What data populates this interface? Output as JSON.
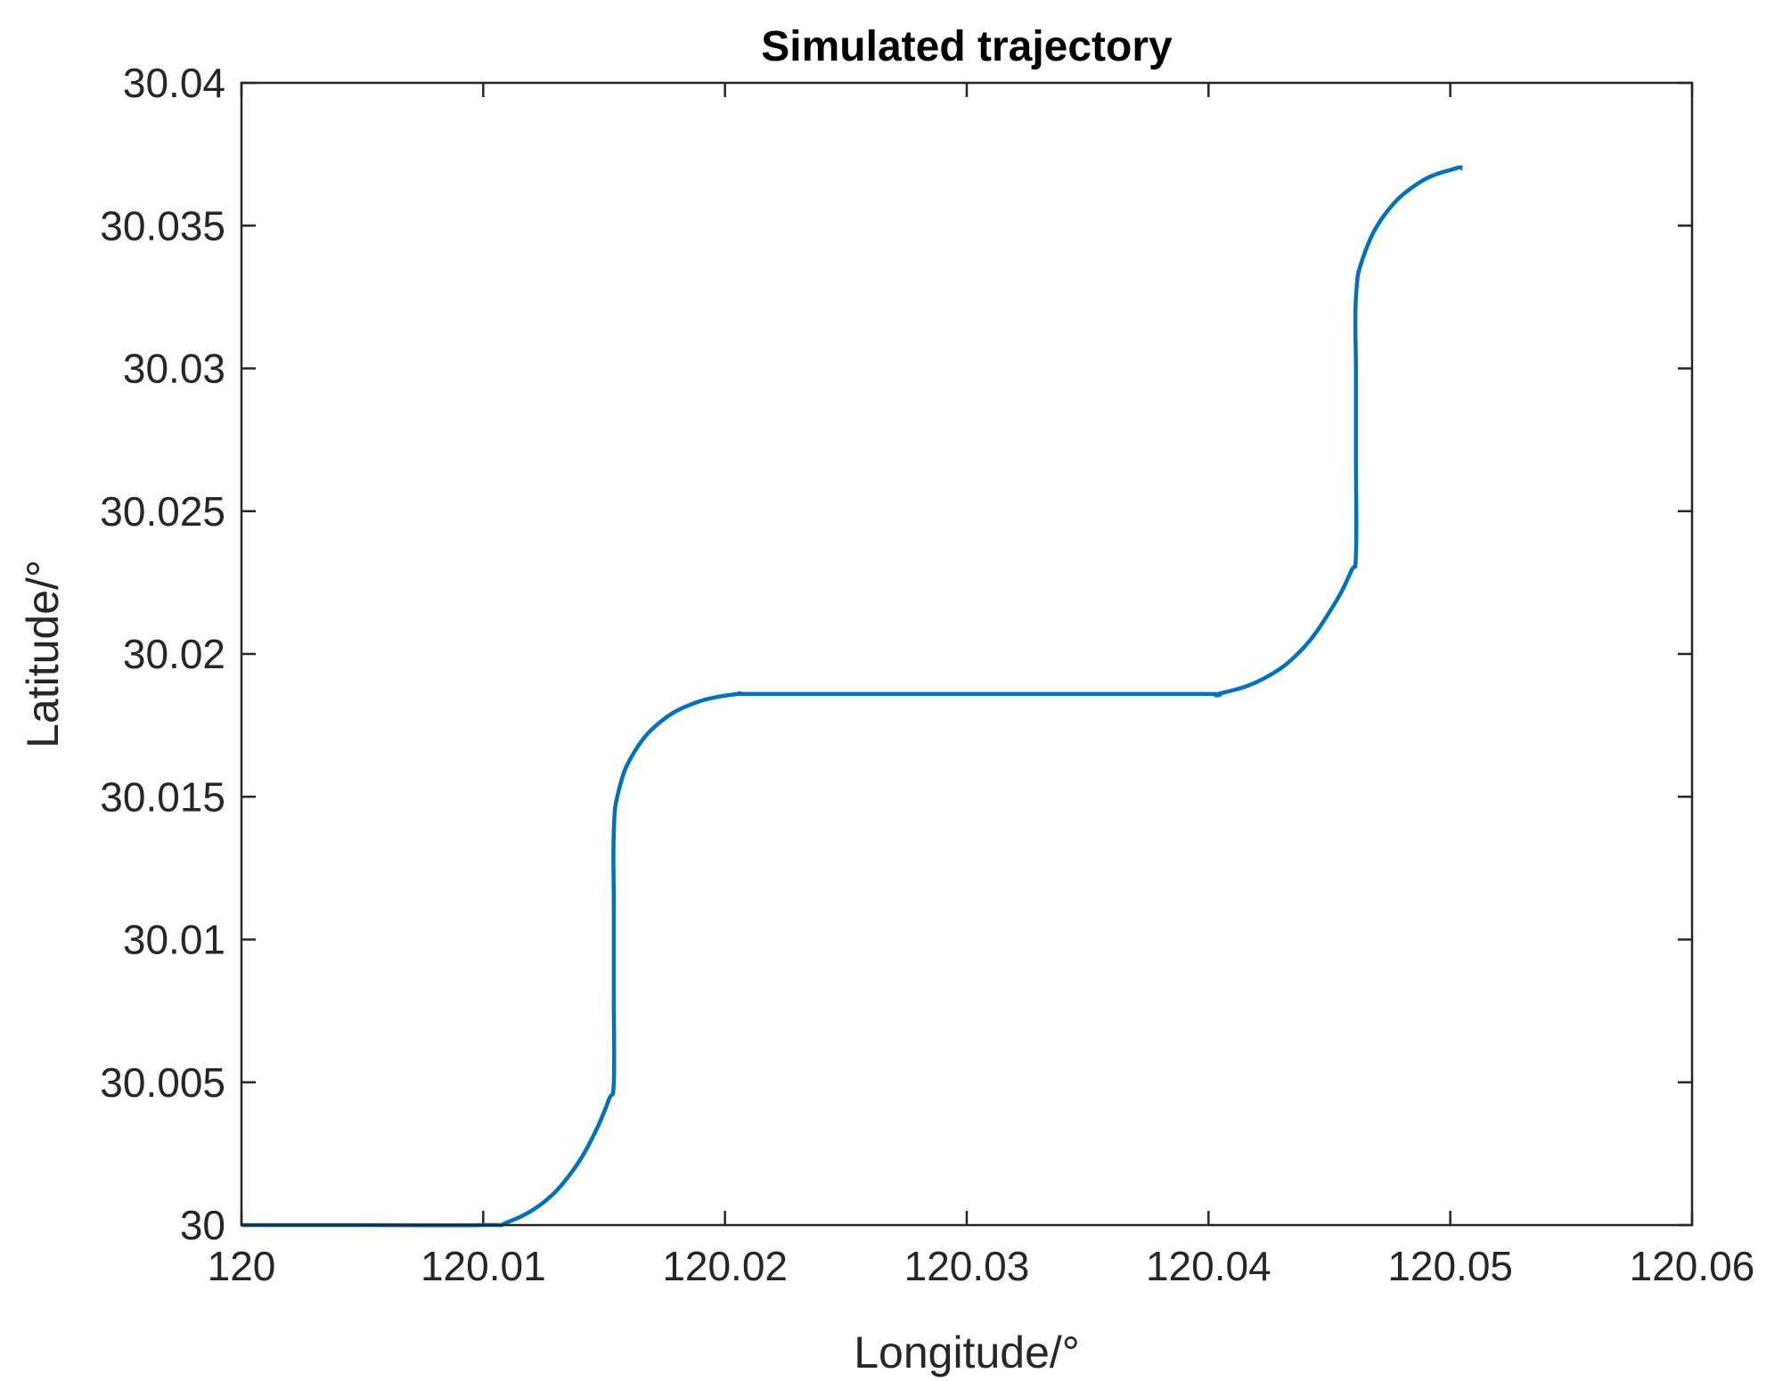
{
  "chart_data": {
    "type": "line",
    "title": "Simulated trajectory",
    "xlabel": "Longitude/°",
    "ylabel": "Latitude/°",
    "xlim": [
      120,
      120.06
    ],
    "ylim": [
      30,
      30.04
    ],
    "xticks": [
      120,
      120.01,
      120.02,
      120.03,
      120.04,
      120.05,
      120.06
    ],
    "yticks": [
      30,
      30.005,
      30.01,
      30.015,
      30.02,
      30.025,
      30.03,
      30.035,
      30.04
    ],
    "xtick_labels": [
      "120",
      "120.01",
      "120.02",
      "120.03",
      "120.04",
      "120.05",
      "120.06"
    ],
    "ytick_labels": [
      "30",
      "30.005",
      "30.01",
      "30.015",
      "30.02",
      "30.025",
      "30.03",
      "30.035",
      "30.04"
    ],
    "grid": false,
    "series": [
      {
        "color": "#0072BD",
        "x": [
          120.0,
          120.005,
          120.01,
          120.011,
          120.0125,
          120.0137,
          120.0146,
          120.0152,
          120.0154,
          120.0154,
          120.0154,
          120.0154,
          120.0156,
          120.0162,
          120.0173,
          120.0188,
          120.0205,
          120.021,
          120.025,
          120.03,
          120.035,
          120.04,
          120.0404,
          120.0422,
          120.0438,
          120.0451,
          120.0459,
          120.0461,
          120.0461,
          120.0461,
          120.0461,
          120.0464,
          120.0473,
          120.0487,
          120.0502,
          120.0505
        ],
        "y": [
          30.0,
          30.0,
          30.0,
          30.0001,
          30.0008,
          30.0019,
          30.0032,
          30.0044,
          30.005,
          30.008,
          30.011,
          30.0138,
          30.0152,
          30.0165,
          30.0176,
          30.0183,
          30.0186,
          30.0186,
          30.0186,
          30.0186,
          30.0186,
          30.0186,
          30.0186,
          30.0191,
          30.0201,
          30.0216,
          30.0229,
          30.0235,
          30.0268,
          30.0298,
          30.0325,
          30.0339,
          30.0354,
          30.0365,
          30.037,
          30.037
        ]
      }
    ]
  }
}
